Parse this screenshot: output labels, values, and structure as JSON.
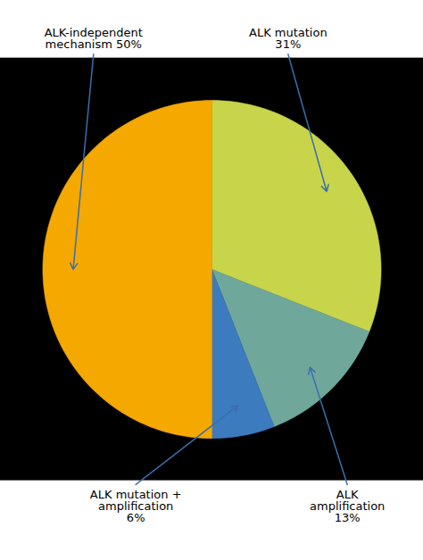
{
  "chart_data": {
    "type": "pie",
    "categories": [
      "ALK mutation\n31%",
      "ALK\namplification\n13%",
      "ALK mutation +\namplification\n6%",
      "ALK-independent\nmechanism 50%"
    ],
    "values": [
      31,
      13,
      6,
      50
    ],
    "colors": [
      "#C8D44A",
      "#6FA89B",
      "#3D7BBF",
      "#F5A800"
    ]
  }
}
